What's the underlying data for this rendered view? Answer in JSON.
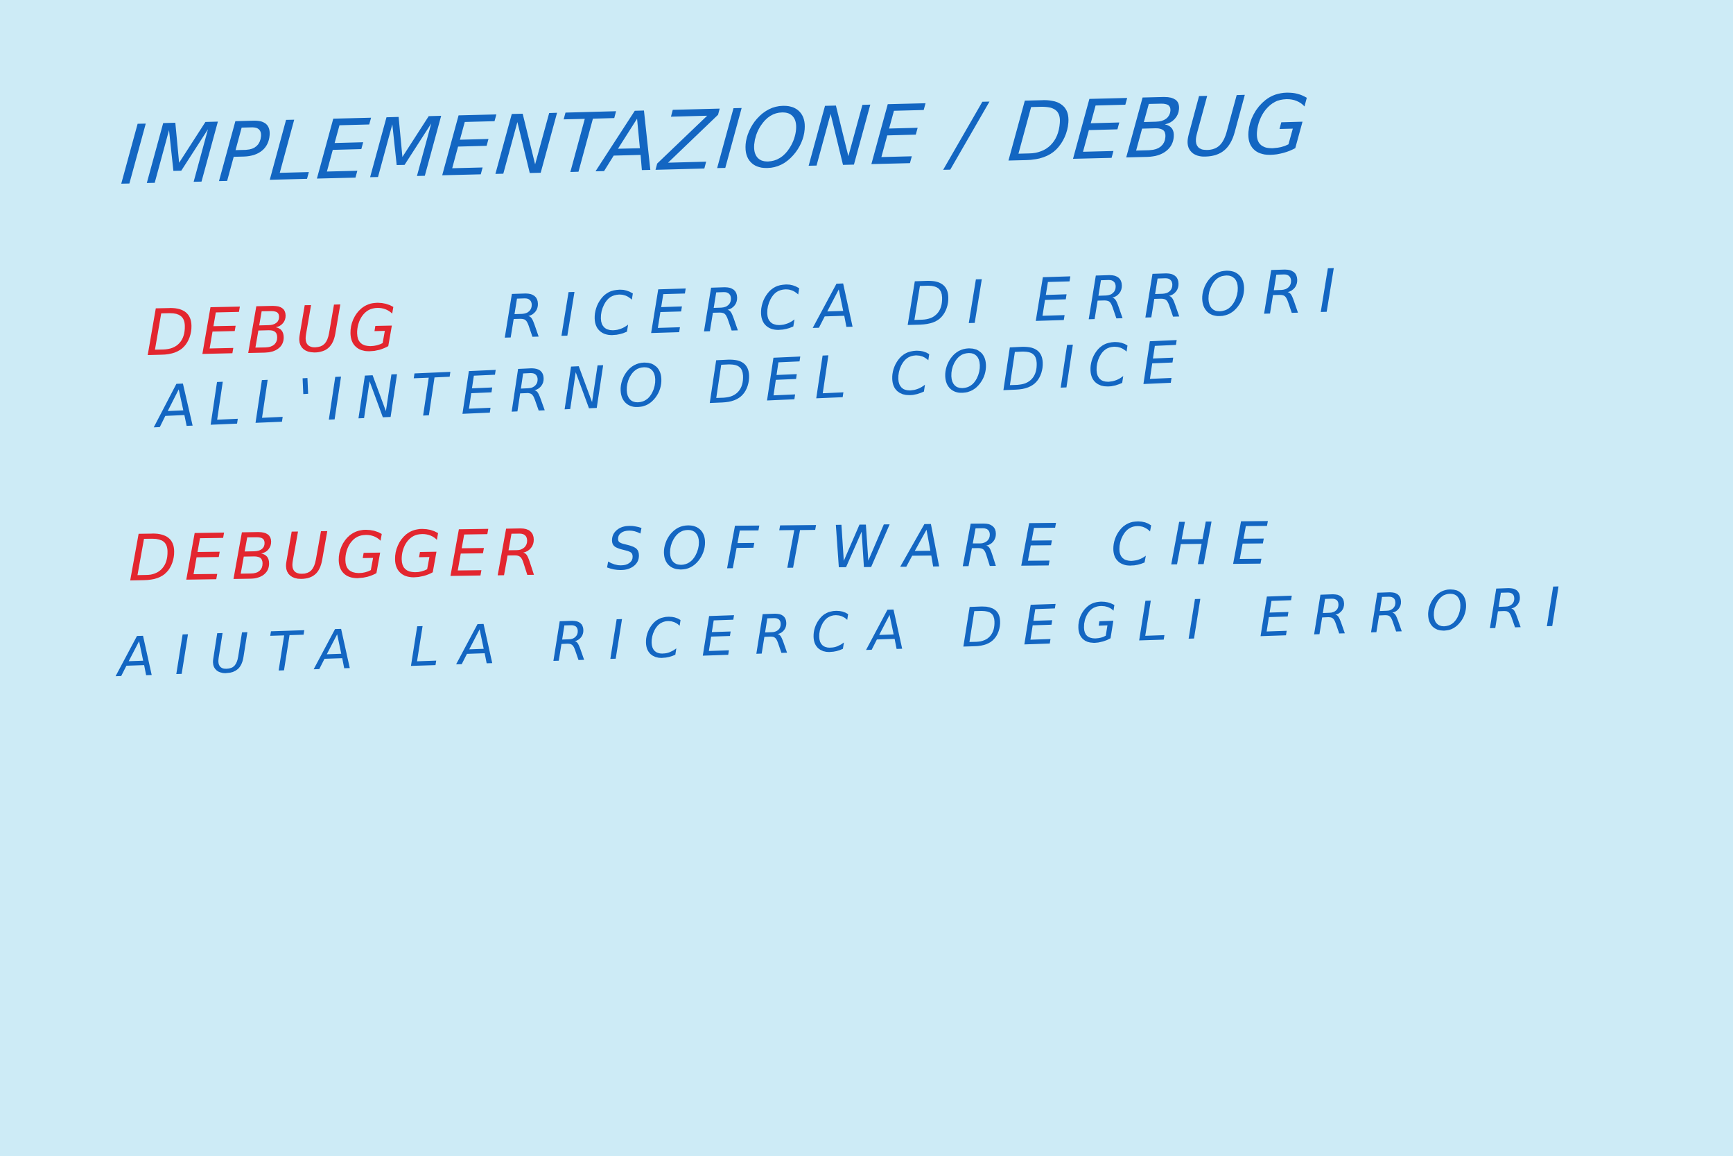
{
  "colors": {
    "background": "#cdebf6",
    "blue_ink": "#1366c2",
    "red_ink": "#e3262f"
  },
  "note": {
    "title": "IMPLEMENTAZIONE / DEBUG",
    "debug_term": "DEBUG",
    "debug_definition_line1": "RICERCA DI ERRORI",
    "debug_definition_line2": "ALL'INTERNO DEL CODICE",
    "debugger_term": "DEBUGGER",
    "debugger_definition_line1": "SOFTWARE CHE",
    "debugger_definition_line2": "AIUTA LA RICERCA DEGLI ERRORI"
  }
}
